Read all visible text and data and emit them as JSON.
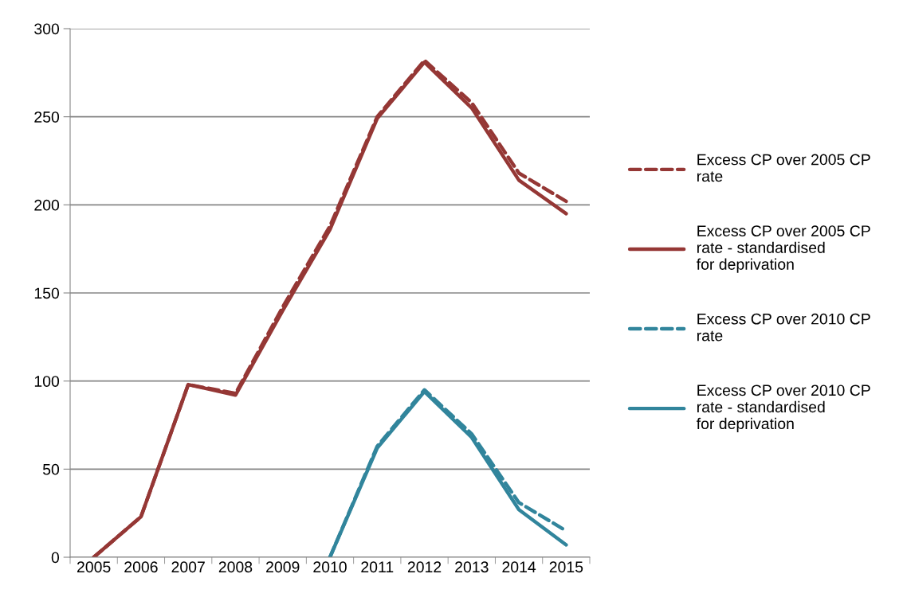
{
  "chart_data": {
    "type": "line",
    "categories": [
      "2005",
      "2006",
      "2007",
      "2008",
      "2009",
      "2010",
      "2011",
      "2012",
      "2013",
      "2014",
      "2015"
    ],
    "series": [
      {
        "name": "Excess CP over 2005 CP rate",
        "color": "#953735",
        "line_style": "dashed",
        "values": [
          0,
          23,
          98,
          93,
          142,
          188,
          250,
          282,
          258,
          218,
          202
        ]
      },
      {
        "name": "Excess CP over 2005 CP rate - standardised for deprivation",
        "color": "#953735",
        "line_style": "solid",
        "values": [
          0,
          23,
          98,
          92,
          140,
          186,
          249,
          281,
          255,
          214,
          195
        ]
      },
      {
        "name": "Excess CP over 2010 CP rate",
        "color": "#31859c",
        "line_style": "dashed",
        "values": [
          null,
          null,
          null,
          null,
          null,
          0,
          63,
          95,
          70,
          31,
          15
        ]
      },
      {
        "name": "Excess CP over 2010 CP rate - standardised for deprivation",
        "color": "#31859c",
        "line_style": "solid",
        "values": [
          null,
          null,
          null,
          null,
          null,
          0,
          62,
          94,
          68,
          27,
          7
        ]
      }
    ],
    "ylim": [
      0,
      300
    ],
    "yticks": [
      0,
      50,
      100,
      150,
      200,
      250,
      300
    ],
    "grid": "y",
    "legend": "right",
    "marker": "none"
  }
}
